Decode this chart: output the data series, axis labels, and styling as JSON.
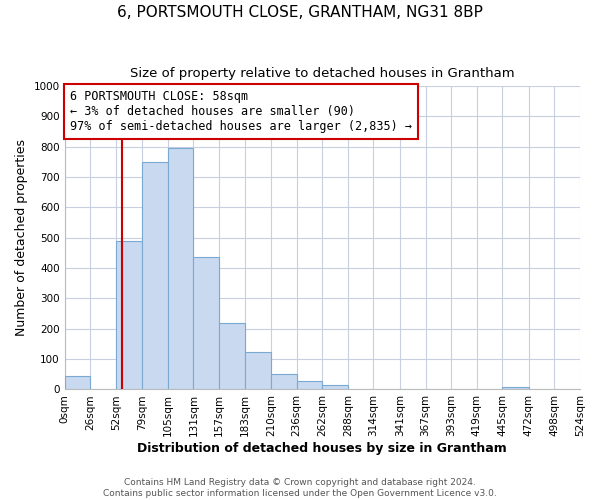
{
  "title": "6, PORTSMOUTH CLOSE, GRANTHAM, NG31 8BP",
  "subtitle": "Size of property relative to detached houses in Grantham",
  "xlabel": "Distribution of detached houses by size in Grantham",
  "ylabel": "Number of detached properties",
  "bar_edges": [
    0,
    26,
    52,
    79,
    105,
    131,
    157,
    183,
    210,
    236,
    262,
    288,
    314,
    341,
    367,
    393,
    419,
    445,
    472,
    498,
    524
  ],
  "bar_heights": [
    45,
    0,
    490,
    750,
    795,
    437,
    220,
    125,
    52,
    28,
    15,
    0,
    0,
    0,
    0,
    0,
    0,
    8,
    0,
    0
  ],
  "bar_color": "#c9d9f0",
  "bar_edgecolor": "#7aaad4",
  "vline_x": 58,
  "vline_color": "#cc0000",
  "annotation_line1": "6 PORTSMOUTH CLOSE: 58sqm",
  "annotation_line2": "← 3% of detached houses are smaller (90)",
  "annotation_line3": "97% of semi-detached houses are larger (2,835) →",
  "annotation_boxcolor": "white",
  "annotation_edgecolor": "#cc0000",
  "ylim": [
    0,
    1000
  ],
  "yticks": [
    0,
    100,
    200,
    300,
    400,
    500,
    600,
    700,
    800,
    900,
    1000
  ],
  "xtick_labels": [
    "0sqm",
    "26sqm",
    "52sqm",
    "79sqm",
    "105sqm",
    "131sqm",
    "157sqm",
    "183sqm",
    "210sqm",
    "236sqm",
    "262sqm",
    "288sqm",
    "314sqm",
    "341sqm",
    "367sqm",
    "393sqm",
    "419sqm",
    "445sqm",
    "472sqm",
    "498sqm",
    "524sqm"
  ],
  "footer1": "Contains HM Land Registry data © Crown copyright and database right 2024.",
  "footer2": "Contains public sector information licensed under the Open Government Licence v3.0.",
  "bg_color": "#ffffff",
  "grid_color": "#c8d0e0",
  "title_fontsize": 11,
  "subtitle_fontsize": 9.5,
  "axis_label_fontsize": 9,
  "tick_fontsize": 7.5,
  "footer_fontsize": 6.5,
  "annotation_fontsize": 8.5
}
